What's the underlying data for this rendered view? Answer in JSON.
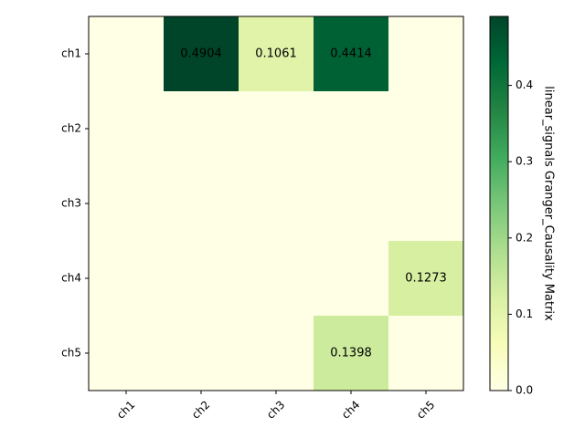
{
  "chart_data": {
    "type": "heatmap",
    "title": "",
    "x_categories": [
      "ch1",
      "ch2",
      "ch3",
      "ch4",
      "ch5"
    ],
    "y_categories": [
      "ch1",
      "ch2",
      "ch3",
      "ch4",
      "ch5"
    ],
    "matrix": [
      [
        0.0,
        0.4904,
        0.1061,
        0.4414,
        0.0
      ],
      [
        0.0,
        0.0,
        0.0,
        0.0,
        0.0
      ],
      [
        0.0,
        0.0,
        0.0,
        0.0,
        0.0
      ],
      [
        0.0,
        0.0,
        0.0,
        0.0,
        0.1273
      ],
      [
        0.0,
        0.0,
        0.0,
        0.1398,
        0.0
      ]
    ],
    "annotations": [
      {
        "row": 0,
        "col": 1,
        "text": "0.4904"
      },
      {
        "row": 0,
        "col": 2,
        "text": "0.1061"
      },
      {
        "row": 0,
        "col": 3,
        "text": "0.4414"
      },
      {
        "row": 3,
        "col": 4,
        "text": "0.1273"
      },
      {
        "row": 4,
        "col": 3,
        "text": "0.1398"
      }
    ],
    "colormap": "YlGn",
    "colorbar": {
      "label": "linear_signals Granger_Causality Matrix",
      "range": [
        0.0,
        0.4904
      ],
      "ticks": [
        0.0,
        0.1,
        0.2,
        0.3,
        0.4
      ],
      "tick_labels": [
        "0.0",
        "0.1",
        "0.2",
        "0.3",
        "0.4"
      ]
    },
    "colors": {
      "cmap_stops": [
        "#ffffe5",
        "#f7fcb9",
        "#d9f0a3",
        "#addd8e",
        "#78c679",
        "#41ab5d",
        "#238443",
        "#006837",
        "#004529"
      ]
    }
  }
}
